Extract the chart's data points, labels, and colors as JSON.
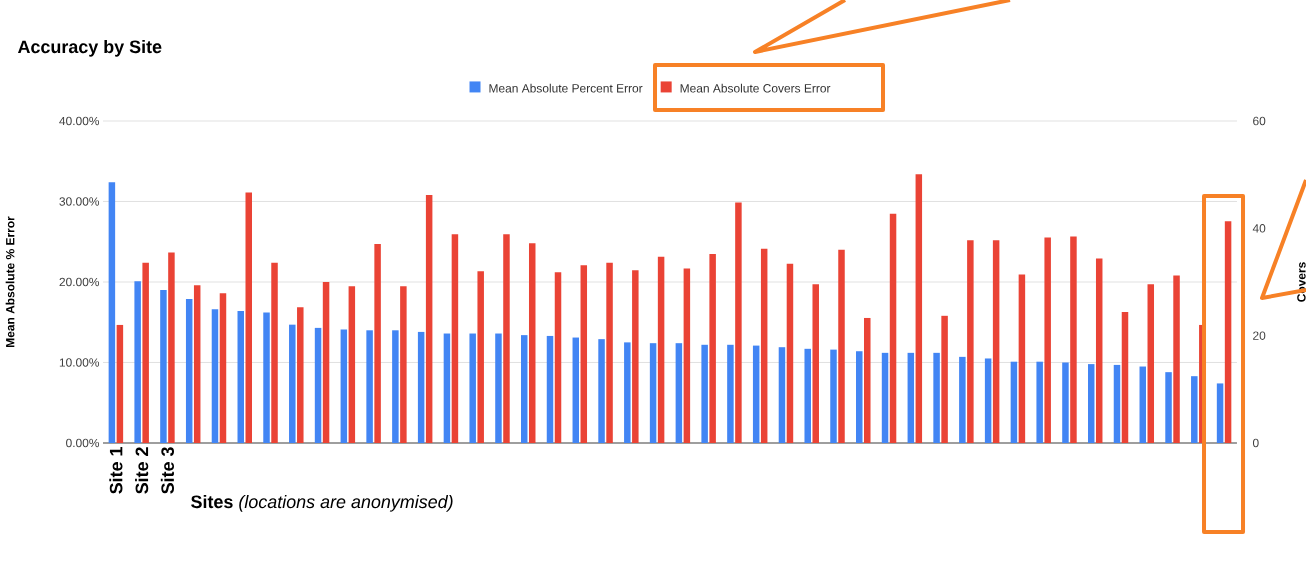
{
  "chart_data": {
    "type": "bar",
    "title": "Accuracy by Site",
    "categories": [
      "Site 1",
      "Site 2",
      "Site 3",
      null,
      null,
      null,
      null,
      null,
      null,
      null,
      null,
      null,
      null,
      null,
      null,
      null,
      null,
      null,
      null,
      null,
      null,
      null,
      null,
      null,
      null,
      null,
      null,
      null,
      null,
      null,
      null,
      null,
      null,
      null,
      null,
      null,
      null,
      null,
      null,
      null,
      null,
      null,
      null,
      null
    ],
    "xlabel": "**Sites** *(locations are anonymised)*",
    "ylabel": "Mean Absolute % Error",
    "y2label": "Covers",
    "series": [
      {
        "name": "Mean Absolute Percent Error",
        "color": "#4285f4",
        "values": [
          32.4,
          20.1,
          19.0,
          17.9,
          16.6,
          16.4,
          16.2,
          14.7,
          14.3,
          14.1,
          14.0,
          14.0,
          13.8,
          13.6,
          13.6,
          13.6,
          13.4,
          13.3,
          13.1,
          12.9,
          12.5,
          12.4,
          12.4,
          12.2,
          12.2,
          12.1,
          11.9,
          11.7,
          11.6,
          11.4,
          11.2,
          11.2,
          11.2,
          10.7,
          10.5,
          10.1,
          10.1,
          10.0,
          9.8,
          9.7,
          9.5,
          8.8,
          8.3,
          7.4
        ]
      },
      {
        "name": "Mean Absolute Covers Error",
        "color": "#ea4335",
        "axis": "y2",
        "values": [
          22.0,
          33.6,
          35.5,
          29.4,
          27.9,
          46.7,
          33.6,
          25.3,
          30.0,
          29.2,
          37.1,
          29.2,
          46.2,
          38.9,
          32.0,
          38.9,
          37.2,
          31.8,
          33.1,
          33.6,
          32.2,
          34.7,
          32.5,
          35.2,
          44.8,
          36.2,
          33.4,
          29.6,
          36.0,
          23.3,
          42.7,
          50.1,
          23.7,
          37.8,
          37.8,
          31.4,
          38.3,
          38.5,
          34.4,
          24.4,
          29.6,
          31.2,
          22.0,
          41.3
        ]
      }
    ],
    "ylim": [
      0,
      40
    ],
    "yticks": [
      {
        "value": 0,
        "label": "0.00%"
      },
      {
        "value": 10,
        "label": "10.00%"
      },
      {
        "value": 20,
        "label": "20.00%"
      },
      {
        "value": 30,
        "label": "30.00%"
      },
      {
        "value": 40,
        "label": "40.00%"
      }
    ],
    "y2lim": [
      0,
      60
    ],
    "y2ticks": [
      0,
      20,
      40,
      60
    ],
    "grid": "y",
    "legend": "top"
  }
}
